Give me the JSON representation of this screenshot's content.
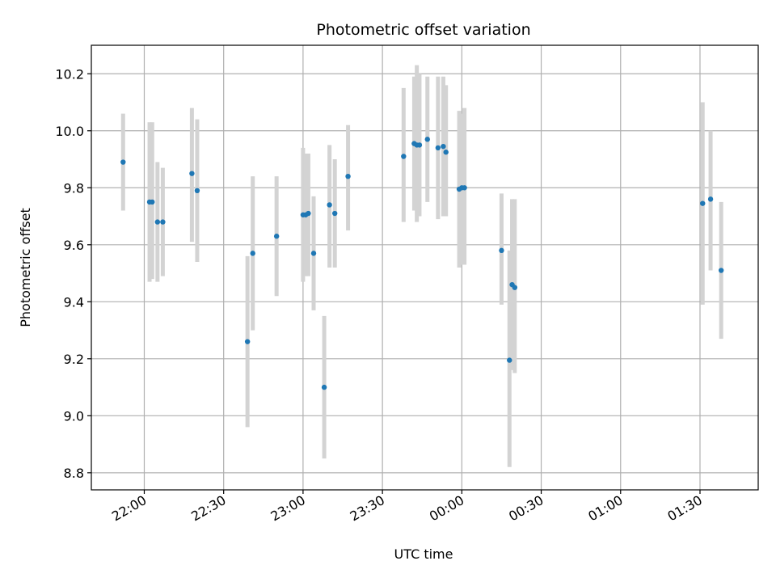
{
  "chart_data": {
    "type": "scatter",
    "title": "Photometric offset variation",
    "xlabel": "UTC time",
    "ylabel": "Photometric offset",
    "grid": true,
    "xlim": [
      "21:40",
      "01:52"
    ],
    "ylim": [
      8.74,
      10.3
    ],
    "xticks": [
      "22:00",
      "22:30",
      "23:00",
      "23:30",
      "00:00",
      "00:30",
      "01:00",
      "01:30"
    ],
    "yticks": [
      "8.8",
      "9.0",
      "9.2",
      "9.4",
      "9.6",
      "9.8",
      "10.0",
      "10.2"
    ],
    "colors": {
      "point": "#1f77b4",
      "errorbar": "#d3d3d3",
      "grid": "#b0b0b0",
      "frame": "#000000"
    },
    "points": [
      {
        "t": "21:52",
        "y": 9.89,
        "lo": 9.72,
        "hi": 10.06
      },
      {
        "t": "22:02",
        "y": 9.75,
        "lo": 9.47,
        "hi": 10.03
      },
      {
        "t": "22:03",
        "y": 9.75,
        "lo": 9.48,
        "hi": 10.03
      },
      {
        "t": "22:05",
        "y": 9.68,
        "lo": 9.47,
        "hi": 9.89
      },
      {
        "t": "22:07",
        "y": 9.68,
        "lo": 9.49,
        "hi": 9.87
      },
      {
        "t": "22:18",
        "y": 9.85,
        "lo": 9.61,
        "hi": 10.08
      },
      {
        "t": "22:20",
        "y": 9.79,
        "lo": 9.54,
        "hi": 10.04
      },
      {
        "t": "22:39",
        "y": 9.26,
        "lo": 8.96,
        "hi": 9.56
      },
      {
        "t": "22:41",
        "y": 9.57,
        "lo": 9.3,
        "hi": 9.84
      },
      {
        "t": "22:50",
        "y": 9.63,
        "lo": 9.42,
        "hi": 9.84
      },
      {
        "t": "23:00",
        "y": 9.705,
        "lo": 9.47,
        "hi": 9.94
      },
      {
        "t": "23:01",
        "y": 9.705,
        "lo": 9.49,
        "hi": 9.92
      },
      {
        "t": "23:02",
        "y": 9.71,
        "lo": 9.49,
        "hi": 9.92
      },
      {
        "t": "23:04",
        "y": 9.57,
        "lo": 9.37,
        "hi": 9.77
      },
      {
        "t": "23:08",
        "y": 9.1,
        "lo": 8.85,
        "hi": 9.35
      },
      {
        "t": "23:10",
        "y": 9.74,
        "lo": 9.52,
        "hi": 9.95
      },
      {
        "t": "23:12",
        "y": 9.71,
        "lo": 9.52,
        "hi": 9.9
      },
      {
        "t": "23:17",
        "y": 9.84,
        "lo": 9.65,
        "hi": 10.02
      },
      {
        "t": "23:38",
        "y": 9.91,
        "lo": 9.68,
        "hi": 10.15
      },
      {
        "t": "23:42",
        "y": 9.955,
        "lo": 9.72,
        "hi": 10.19
      },
      {
        "t": "23:43",
        "y": 9.95,
        "lo": 9.68,
        "hi": 10.23
      },
      {
        "t": "23:44",
        "y": 9.95,
        "lo": 9.7,
        "hi": 10.2
      },
      {
        "t": "23:47",
        "y": 9.97,
        "lo": 9.75,
        "hi": 10.19
      },
      {
        "t": "23:51",
        "y": 9.94,
        "lo": 9.69,
        "hi": 10.19
      },
      {
        "t": "23:53",
        "y": 9.945,
        "lo": 9.7,
        "hi": 10.19
      },
      {
        "t": "23:54",
        "y": 9.925,
        "lo": 9.7,
        "hi": 10.16
      },
      {
        "t": "23:59",
        "y": 9.795,
        "lo": 9.52,
        "hi": 10.07
      },
      {
        "t": "00:00",
        "y": 9.8,
        "lo": 9.53,
        "hi": 10.06
      },
      {
        "t": "00:01",
        "y": 9.8,
        "lo": 9.53,
        "hi": 10.08
      },
      {
        "t": "00:15",
        "y": 9.58,
        "lo": 9.39,
        "hi": 9.78
      },
      {
        "t": "00:18",
        "y": 9.195,
        "lo": 8.82,
        "hi": 9.58
      },
      {
        "t": "00:19",
        "y": 9.46,
        "lo": 9.16,
        "hi": 9.76
      },
      {
        "t": "00:20",
        "y": 9.45,
        "lo": 9.15,
        "hi": 9.76
      },
      {
        "t": "01:31",
        "y": 9.745,
        "lo": 9.39,
        "hi": 10.1
      },
      {
        "t": "01:34",
        "y": 9.76,
        "lo": 9.51,
        "hi": 10.0
      },
      {
        "t": "01:38",
        "y": 9.51,
        "lo": 9.27,
        "hi": 9.75
      }
    ]
  }
}
